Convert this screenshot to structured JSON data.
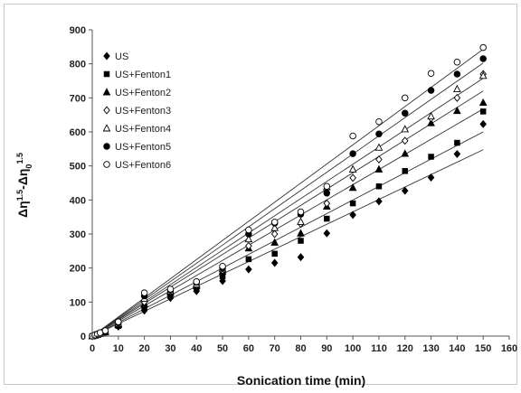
{
  "chart_data": {
    "type": "scatter",
    "xlabel": "Sonication time (min)",
    "ylabel_base": "Δη",
    "ylabel_sup1": "1.5",
    "ylabel_mid": "-Δη",
    "ylabel_sub": "0",
    "ylabel_sup2": "1.5",
    "xlim": [
      0,
      160
    ],
    "ylim": [
      0,
      900
    ],
    "xticks": [
      0,
      10,
      20,
      30,
      40,
      50,
      60,
      70,
      80,
      90,
      100,
      110,
      120,
      130,
      140,
      150,
      160
    ],
    "yticks": [
      0,
      100,
      200,
      300,
      400,
      500,
      600,
      700,
      800,
      900
    ],
    "legend_position": "top-left",
    "grid": false,
    "x": [
      0,
      1,
      2,
      3,
      5,
      10,
      20,
      30,
      40,
      50,
      60,
      70,
      80,
      90,
      100,
      110,
      120,
      130,
      140,
      150
    ],
    "series": [
      {
        "name": "US",
        "marker": "diamond-filled",
        "values": [
          0,
          2,
          4,
          6,
          10,
          28,
          75,
          112,
          132,
          162,
          196,
          215,
          232,
          302,
          356,
          396,
          427,
          466,
          535,
          623
        ],
        "slope": 3.65
      },
      {
        "name": "US+Fenton1",
        "marker": "square-filled",
        "values": [
          0,
          2,
          4,
          6,
          11,
          30,
          82,
          120,
          142,
          176,
          226,
          242,
          280,
          345,
          390,
          440,
          485,
          527,
          568,
          660
        ],
        "slope": 4.0
      },
      {
        "name": "US+Fenton2",
        "marker": "triangle-filled",
        "values": [
          0,
          2,
          5,
          7,
          12,
          33,
          95,
          128,
          148,
          190,
          258,
          275,
          302,
          381,
          436,
          490,
          536,
          626,
          662,
          686
        ],
        "slope": 4.45
      },
      {
        "name": "US+Fenton3",
        "marker": "diamond-open",
        "values": [
          0,
          2,
          5,
          8,
          13,
          35,
          100,
          130,
          150,
          193,
          265,
          300,
          330,
          390,
          465,
          519,
          574,
          640,
          700,
          770
        ],
        "slope": 4.8
      },
      {
        "name": "US+Fenton4",
        "marker": "triangle-open",
        "values": [
          0,
          3,
          5,
          8,
          14,
          37,
          110,
          132,
          152,
          197,
          285,
          318,
          336,
          438,
          490,
          554,
          608,
          646,
          726,
          765
        ],
        "slope": 5.05
      },
      {
        "name": "US+Fenton5",
        "marker": "circle-filled",
        "values": [
          0,
          3,
          6,
          9,
          15,
          40,
          118,
          135,
          158,
          200,
          300,
          332,
          358,
          420,
          536,
          594,
          655,
          722,
          770,
          815
        ],
        "slope": 5.35
      },
      {
        "name": "US+Fenton6",
        "marker": "circle-open",
        "values": [
          0,
          3,
          6,
          10,
          16,
          42,
          127,
          138,
          160,
          205,
          312,
          335,
          365,
          440,
          588,
          630,
          700,
          772,
          805,
          848
        ],
        "slope": 5.62
      }
    ]
  }
}
